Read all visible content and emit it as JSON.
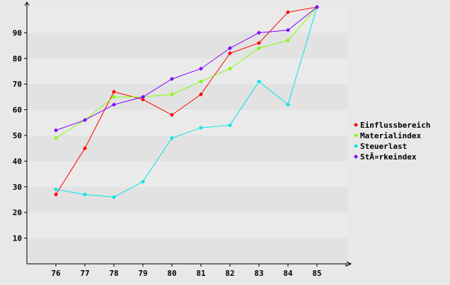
{
  "chart_data": {
    "type": "line",
    "categories": [
      "76",
      "77",
      "78",
      "79",
      "80",
      "81",
      "82",
      "83",
      "84",
      "85"
    ],
    "ylim": [
      0,
      100
    ],
    "yticks": [
      10,
      20,
      30,
      40,
      50,
      60,
      70,
      80,
      90
    ],
    "grid": "horizontal-bands",
    "legend_position": "right",
    "background_color": "#e8e8e8",
    "band_colors": [
      "#e2e2e2",
      "#eaeaea"
    ],
    "series": [
      {
        "name": "Einflussbereich",
        "color": "#ff0000",
        "values": [
          27,
          45,
          67,
          64,
          58,
          66,
          82,
          86,
          98,
          100
        ]
      },
      {
        "name": "Materialindex",
        "color": "#80ff00",
        "values": [
          49,
          56,
          65,
          65,
          66,
          71,
          76,
          84,
          87,
          100
        ]
      },
      {
        "name": "Steuerlast",
        "color": "#00e5e5",
        "values": [
          29,
          27,
          26,
          32,
          49,
          53,
          54,
          71,
          62,
          100
        ]
      },
      {
        "name": "StÃ¤rkeindex",
        "color": "#8000ff",
        "values": [
          52,
          56,
          62,
          65,
          72,
          76,
          84,
          90,
          91,
          100
        ]
      }
    ]
  }
}
